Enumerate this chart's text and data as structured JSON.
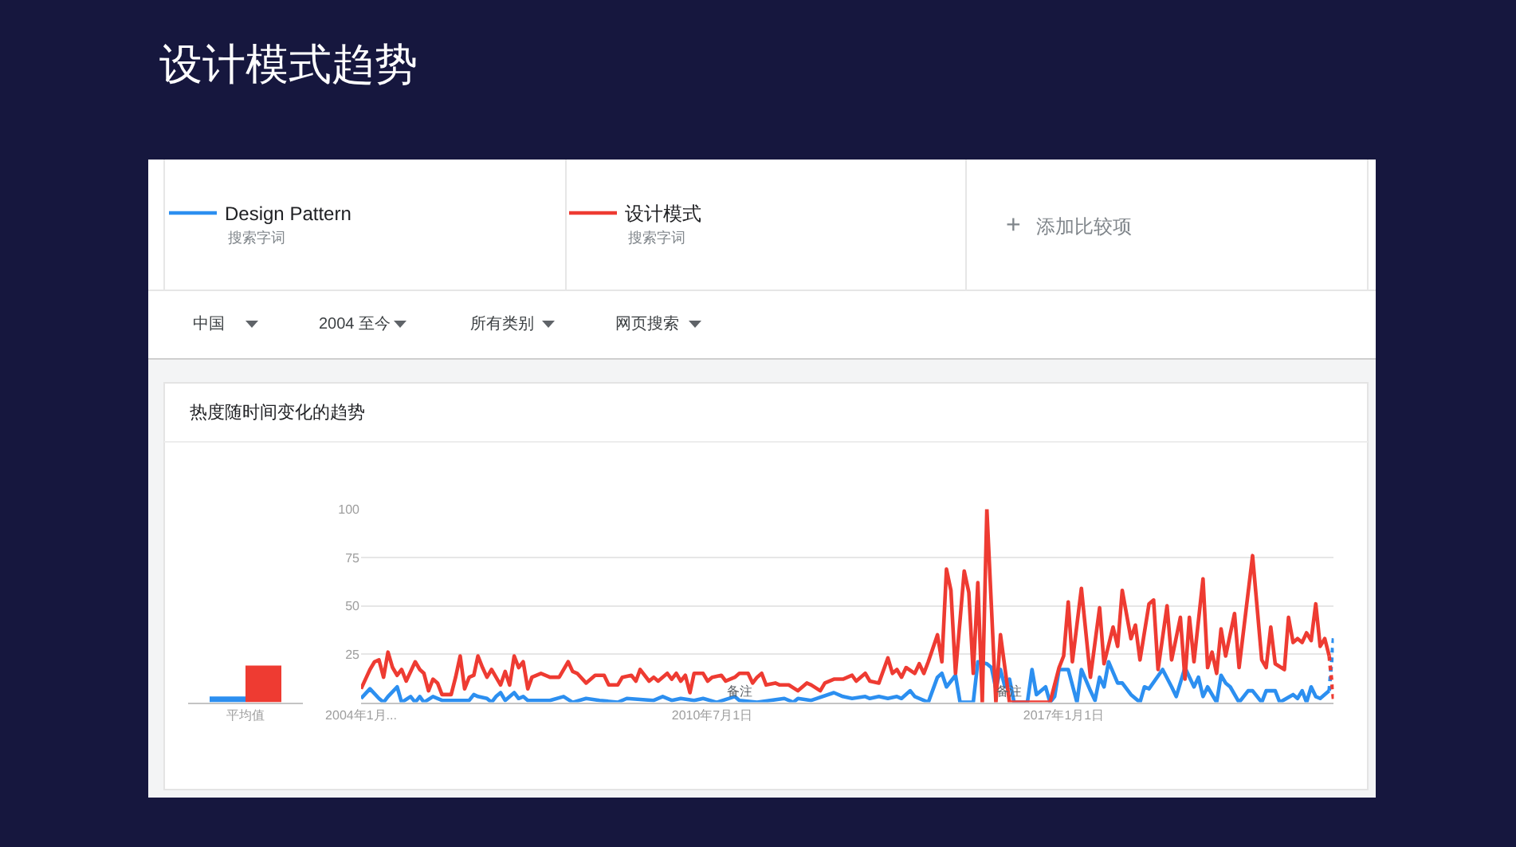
{
  "chart_data": [
    {
      "type": "other",
      "title": "设计模式趋势",
      "annotations": [
        "搜索字词",
        "搜索字词",
        "+",
        "添加比较项",
        "中国",
        "2004 至今",
        "所有类别",
        "网页搜索"
      ]
    },
    {
      "type": "bar",
      "title": "热度随时间变化的趋势",
      "categories": [
        "平均值"
      ],
      "series": [
        {
          "color": "#2c8ff0",
          "values": [
            3
          ]
        },
        {
          "color": "#ee3b32",
          "values": [
            19
          ]
        }
      ],
      "ylim": [
        0,
        100
      ],
      "tick_labels": "x"
    },
    {
      "type": "line",
      "legend": "top",
      "grid": "y",
      "ylim": [
        0,
        100
      ],
      "yticks": [
        25,
        50,
        75,
        100
      ],
      "xlim": [
        "2004-01",
        "2022-01"
      ],
      "xticks": [
        {
          "value": "2004-01-01",
          "label": "2004年1月..."
        },
        {
          "value": "2010-07-01",
          "label": "2010年7月1日"
        },
        {
          "value": "2017-01-01",
          "label": "2017年1月1日"
        }
      ],
      "annotations": [
        {
          "text": "备注",
          "x": "2011-01-01",
          "y": 6
        },
        {
          "text": "备注",
          "x": "2016-01-01",
          "y": 6
        }
      ],
      "series": [
        {
          "name": "Design Pattern",
          "color": "#2c8ff0",
          "x": [
            "2004-01",
            "2004-03",
            "2004-05",
            "2004-06",
            "2004-07",
            "2004-09",
            "2004-10",
            "2004-12",
            "2005-01",
            "2005-02",
            "2005-03",
            "2005-05",
            "2005-07",
            "2006-01",
            "2006-02",
            "2006-03",
            "2006-05",
            "2006-06",
            "2006-07",
            "2006-08",
            "2006-09",
            "2006-11",
            "2006-12",
            "2007-01",
            "2007-02",
            "2007-07",
            "2007-10",
            "2007-12",
            "2008-03",
            "2008-06",
            "2008-10",
            "2008-12",
            "2009-06",
            "2009-08",
            "2009-10",
            "2009-12",
            "2010-03",
            "2010-05",
            "2010-08",
            "2010-12",
            "2011-01",
            "2011-05",
            "2011-11",
            "2012-01",
            "2012-02",
            "2012-05",
            "2012-10",
            "2012-12",
            "2013-02",
            "2013-05",
            "2013-06",
            "2013-08",
            "2013-10",
            "2013-12",
            "2014-01",
            "2014-03",
            "2014-04",
            "2014-07",
            "2014-09",
            "2014-10",
            "2014-11",
            "2015-01",
            "2015-02",
            "2015-05",
            "2015-06",
            "2015-08",
            "2015-09",
            "2015-10",
            "2015-11",
            "2015-12",
            "2016-01",
            "2016-02",
            "2016-05",
            "2016-06",
            "2016-07",
            "2016-09",
            "2016-10",
            "2016-11",
            "2016-12",
            "2017-02",
            "2017-04",
            "2017-05",
            "2017-07",
            "2017-08",
            "2017-09",
            "2017-10",
            "2017-11",
            "2018-01",
            "2018-02",
            "2018-04",
            "2018-06",
            "2018-07",
            "2018-08",
            "2018-11",
            "2019-01",
            "2019-02",
            "2019-04",
            "2019-06",
            "2019-07",
            "2019-08",
            "2019-09",
            "2019-11",
            "2019-12",
            "2020-01",
            "2020-02",
            "2020-04",
            "2020-06",
            "2020-07",
            "2020-09",
            "2020-10",
            "2020-12",
            "2021-01",
            "2021-04",
            "2021-05",
            "2021-06",
            "2021-07",
            "2021-08",
            "2021-09",
            "2021-10",
            "2021-12"
          ],
          "values": [
            2,
            7,
            2,
            0,
            3,
            8,
            0,
            3,
            0,
            3,
            0,
            3,
            1,
            1,
            4,
            3,
            2,
            0,
            3,
            5,
            1,
            5,
            2,
            3,
            1,
            1,
            3,
            0,
            2,
            1,
            0,
            2,
            1,
            3,
            1,
            2,
            1,
            2,
            0,
            3,
            1,
            0,
            2,
            0,
            2,
            1,
            5,
            3,
            2,
            3,
            2,
            3,
            2,
            3,
            2,
            6,
            3,
            0,
            13,
            15,
            8,
            14,
            0,
            0,
            21,
            20,
            18,
            7,
            17,
            8,
            12,
            0,
            0,
            17,
            4,
            8,
            0,
            3,
            17,
            17,
            0,
            17,
            6,
            1,
            13,
            8,
            21,
            10,
            10,
            4,
            0,
            8,
            7,
            17,
            8,
            3,
            18,
            8,
            13,
            3,
            8,
            0,
            14,
            10,
            8,
            0,
            6,
            6,
            0,
            6,
            6,
            0,
            4,
            2,
            6,
            0,
            8,
            3,
            2,
            6
          ]
        },
        {
          "name": "设计模式",
          "color": "#ee3b32",
          "x": [
            "2004-01",
            "2004-03",
            "2004-04",
            "2004-05",
            "2004-06",
            "2004-07",
            "2004-08",
            "2004-09",
            "2004-10",
            "2004-11",
            "2005-01",
            "2005-02",
            "2005-03",
            "2005-04",
            "2005-05",
            "2005-06",
            "2005-07",
            "2005-09",
            "2005-10",
            "2005-11",
            "2005-12",
            "2006-01",
            "2006-02",
            "2006-03",
            "2006-04",
            "2006-05",
            "2006-06",
            "2006-08",
            "2006-09",
            "2006-10",
            "2006-11",
            "2006-12",
            "2007-01",
            "2007-02",
            "2007-03",
            "2007-05",
            "2007-07",
            "2007-09",
            "2007-11",
            "2007-12",
            "2008-01",
            "2008-03",
            "2008-05",
            "2008-07",
            "2008-08",
            "2008-10",
            "2008-11",
            "2009-01",
            "2009-02",
            "2009-03",
            "2009-05",
            "2009-06",
            "2009-07",
            "2009-09",
            "2009-10",
            "2009-11",
            "2009-12",
            "2010-01",
            "2010-02",
            "2010-03",
            "2010-05",
            "2010-06",
            "2010-07",
            "2010-09",
            "2010-10",
            "2010-12",
            "2011-01",
            "2011-03",
            "2011-04",
            "2011-05",
            "2011-06",
            "2011-07",
            "2011-09",
            "2011-10",
            "2011-12",
            "2012-02",
            "2012-04",
            "2012-05",
            "2012-07",
            "2012-08",
            "2012-10",
            "2012-12",
            "2013-02",
            "2013-03",
            "2013-05",
            "2013-06",
            "2013-08",
            "2013-10",
            "2013-11",
            "2013-12",
            "2014-01",
            "2014-02",
            "2014-04",
            "2014-05",
            "2014-06",
            "2014-07",
            "2014-09",
            "2014-10",
            "2014-11",
            "2014-12",
            "2015-01",
            "2015-03",
            "2015-04",
            "2015-05",
            "2015-06",
            "2015-07",
            "2015-08",
            "2015-10",
            "2015-11",
            "2016-01",
            "2016-10",
            "2016-12",
            "2017-01",
            "2017-02",
            "2017-03",
            "2017-05",
            "2017-07",
            "2017-09",
            "2017-10",
            "2017-12",
            "2018-01",
            "2018-02",
            "2018-04",
            "2018-05",
            "2018-06",
            "2018-08",
            "2018-09",
            "2018-10",
            "2018-12",
            "2019-01",
            "2019-03",
            "2019-04",
            "2019-05",
            "2019-06",
            "2019-08",
            "2019-09",
            "2019-10",
            "2019-11",
            "2019-12",
            "2020-01",
            "2020-03",
            "2020-04",
            "2020-07",
            "2020-09",
            "2020-10",
            "2020-11",
            "2020-12",
            "2021-02",
            "2021-03",
            "2021-04",
            "2021-05",
            "2021-06",
            "2021-07",
            "2021-08",
            "2021-09",
            "2021-10",
            "2021-11",
            "2021-12"
          ],
          "values": [
            7,
            17,
            21,
            22,
            13,
            26,
            18,
            14,
            17,
            11,
            21,
            17,
            15,
            6,
            12,
            10,
            4,
            4,
            13,
            24,
            7,
            13,
            14,
            24,
            18,
            13,
            17,
            9,
            16,
            9,
            24,
            18,
            21,
            7,
            13,
            15,
            13,
            13,
            21,
            16,
            15,
            10,
            14,
            14,
            9,
            9,
            13,
            14,
            11,
            17,
            11,
            13,
            11,
            15,
            12,
            15,
            11,
            14,
            5,
            15,
            15,
            11,
            13,
            14,
            11,
            13,
            15,
            15,
            10,
            13,
            15,
            9,
            10,
            9,
            9,
            6,
            10,
            9,
            6,
            10,
            12,
            12,
            14,
            11,
            15,
            11,
            10,
            23,
            15,
            17,
            13,
            18,
            15,
            20,
            15,
            21,
            35,
            21,
            69,
            58,
            15,
            68,
            57,
            15,
            62,
            0,
            100,
            0,
            35,
            0,
            0,
            18,
            24,
            52,
            21,
            59,
            13,
            49,
            20,
            39,
            29,
            58,
            33,
            40,
            22,
            51,
            53,
            17,
            50,
            22,
            44,
            12,
            44,
            21,
            64,
            18,
            26,
            15,
            38,
            24,
            46,
            18,
            76,
            22,
            18,
            39,
            20,
            17,
            44,
            31,
            33,
            31,
            36,
            32,
            51,
            29,
            33,
            24
          ]
        },
        {
          "color": "#2c8ff0",
          "line_style": "dotted",
          "x": [
            "2021-12",
            "2022-01"
          ],
          "values": [
            6,
            35
          ]
        },
        {
          "color": "#ee3b32",
          "line_style": "dotted",
          "x": [
            "2021-12",
            "2022-01"
          ],
          "values": [
            24,
            0
          ]
        }
      ]
    }
  ]
}
